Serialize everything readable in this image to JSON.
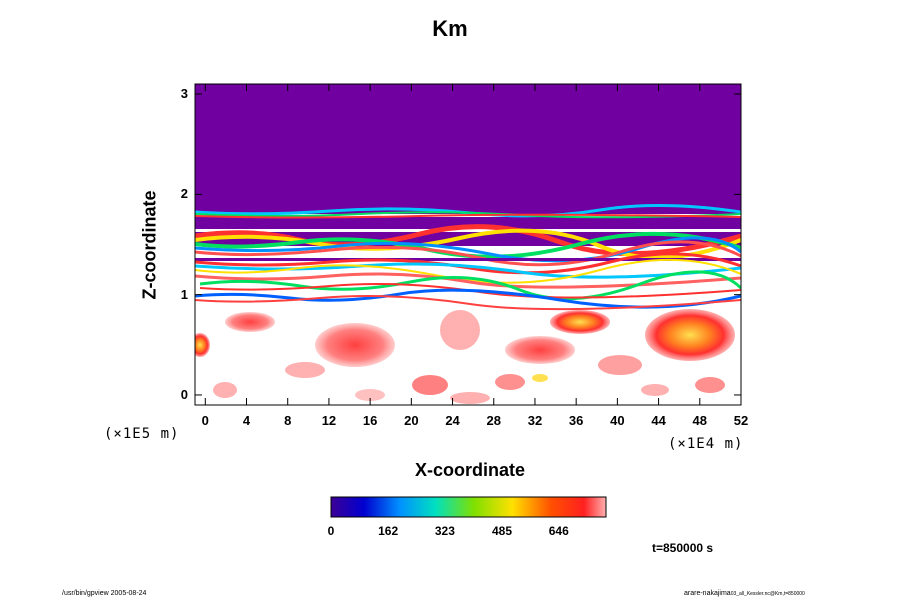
{
  "chart_data": {
    "type": "heatmap",
    "title": "Km",
    "xlabel": "X-coordinate",
    "ylabel": "Z-coordinate",
    "x_unit": "(×1E4 m)",
    "y_unit": "(×1E5 m)",
    "xlim": [
      -1,
      52
    ],
    "ylim": [
      -0.1,
      3.1
    ],
    "x_ticks": [
      "0",
      "4",
      "8",
      "12",
      "16",
      "20",
      "24",
      "28",
      "32",
      "36",
      "40",
      "44",
      "48",
      "52"
    ],
    "y_ticks": [
      "0",
      "1",
      "2",
      "3"
    ],
    "colorbar": {
      "tick_labels": [
        "0",
        "162",
        "323",
        "485",
        "646"
      ],
      "tick_values": [
        0,
        162,
        323,
        485,
        646
      ],
      "range": [
        0,
        780
      ]
    },
    "time_label": "t=850000 s",
    "colors": {
      "upper_layer": "#7000a0",
      "low_range": "#3c0096",
      "high_range": "#ff5050"
    }
  },
  "footer": {
    "left": "/usr/bin/gpview 2005-08-24",
    "right_main": "arare-nakajima",
    "right_sub": "03_all_Kessler.nc@Km,t=850000"
  }
}
